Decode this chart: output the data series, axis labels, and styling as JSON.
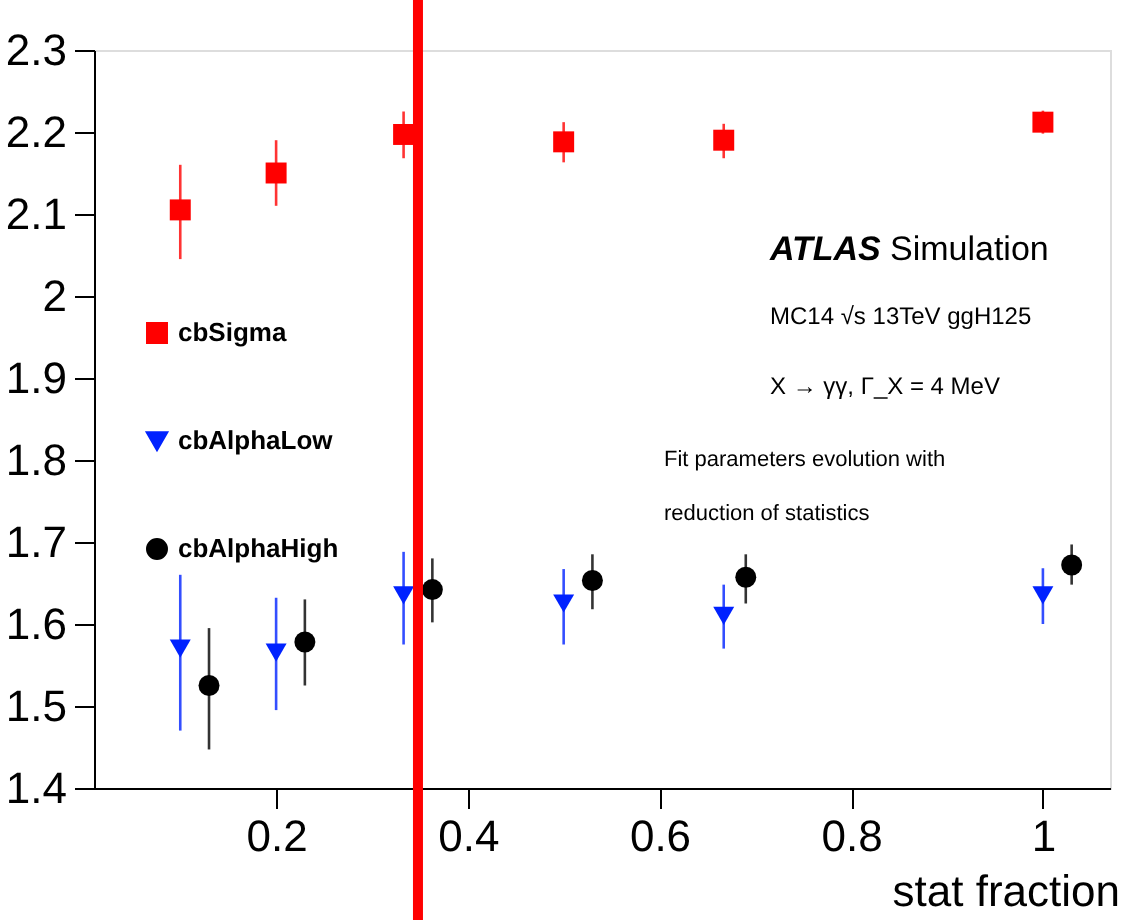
{
  "chart_data": {
    "type": "scatter",
    "xlabel": "stat fraction",
    "xlim": [
      0.01,
      1.07
    ],
    "xticks": [
      0.2,
      0.4,
      0.6,
      0.8,
      1
    ],
    "ylim": [
      1.4,
      2.3
    ],
    "yticks": [
      1.4,
      1.5,
      1.6,
      1.7,
      1.8,
      1.9,
      2,
      2.1,
      2.2,
      2.3
    ],
    "grid": false,
    "legend": "left",
    "series": [
      {
        "name": "cbSigma",
        "color": "#ff0000",
        "marker": "square",
        "x": [
          0.1,
          0.2,
          0.333,
          0.5,
          0.667,
          1.0
        ],
        "values": [
          2.105,
          2.15,
          2.197,
          2.188,
          2.19,
          2.212
        ],
        "errors": [
          [
            2.045,
            2.16
          ],
          [
            2.11,
            2.19
          ],
          [
            2.168,
            2.225
          ],
          [
            2.163,
            2.212
          ],
          [
            2.168,
            2.21
          ],
          [
            2.198,
            2.226
          ]
        ]
      },
      {
        "name": "cbAlphaLow",
        "color": "#0022ff",
        "marker": "triangle",
        "x": [
          0.1,
          0.2,
          0.333,
          0.5,
          0.667,
          1.0
        ],
        "values": [
          1.57,
          1.565,
          1.635,
          1.625,
          1.61,
          1.635
        ],
        "errors": [
          [
            1.47,
            1.66
          ],
          [
            1.495,
            1.632
          ],
          [
            1.575,
            1.688
          ],
          [
            1.575,
            1.667
          ],
          [
            1.57,
            1.648
          ],
          [
            1.6,
            1.668
          ]
        ]
      },
      {
        "name": "cbAlphaHigh",
        "color": "#000000",
        "marker": "circle",
        "x": [
          0.13,
          0.23,
          0.363,
          0.53,
          0.69,
          1.03
        ],
        "values": [
          1.525,
          1.578,
          1.642,
          1.653,
          1.657,
          1.672
        ],
        "errors": [
          [
            1.447,
            1.595
          ],
          [
            1.525,
            1.63
          ],
          [
            1.602,
            1.68
          ],
          [
            1.618,
            1.685
          ],
          [
            1.625,
            1.685
          ],
          [
            1.648,
            1.697
          ]
        ]
      }
    ],
    "ref_lines": [
      {
        "axis": "x",
        "value": 0.348,
        "color": "#ff0000"
      }
    ],
    "annotations": [
      "ATLAS Simulation",
      "MC14 √s 13TeV ggH125",
      "X → γγ, Γ_X = 4 MeV",
      "Fit parameters evolution with",
      "reduction of statistics"
    ]
  }
}
